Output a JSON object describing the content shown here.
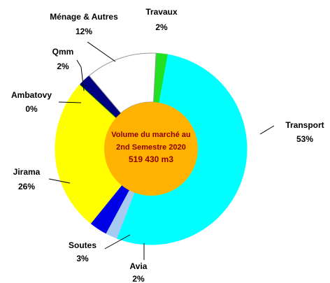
{
  "chart_data": {
    "type": "donut",
    "categories": [
      "Travaux",
      "Transport",
      "Avia",
      "Soutes",
      "Jirama",
      "Ambatovy",
      "Qmm",
      "Ménage & Autres"
    ],
    "values": [
      2,
      53,
      2,
      3,
      26,
      0,
      2,
      12
    ],
    "value_labels": [
      "2%",
      "53%",
      "2%",
      "3%",
      "26%",
      "0%",
      "2%",
      "12%"
    ],
    "colors": [
      "#22e022",
      "#00ffff",
      "#a6caf0",
      "#0000e6",
      "#ffff00",
      "#006600",
      "#000080",
      "#ffffff"
    ],
    "center_text": [
      "Volume du marché au",
      "2nd Semestre 2020"
    ],
    "total_label": "519 430 m3"
  }
}
